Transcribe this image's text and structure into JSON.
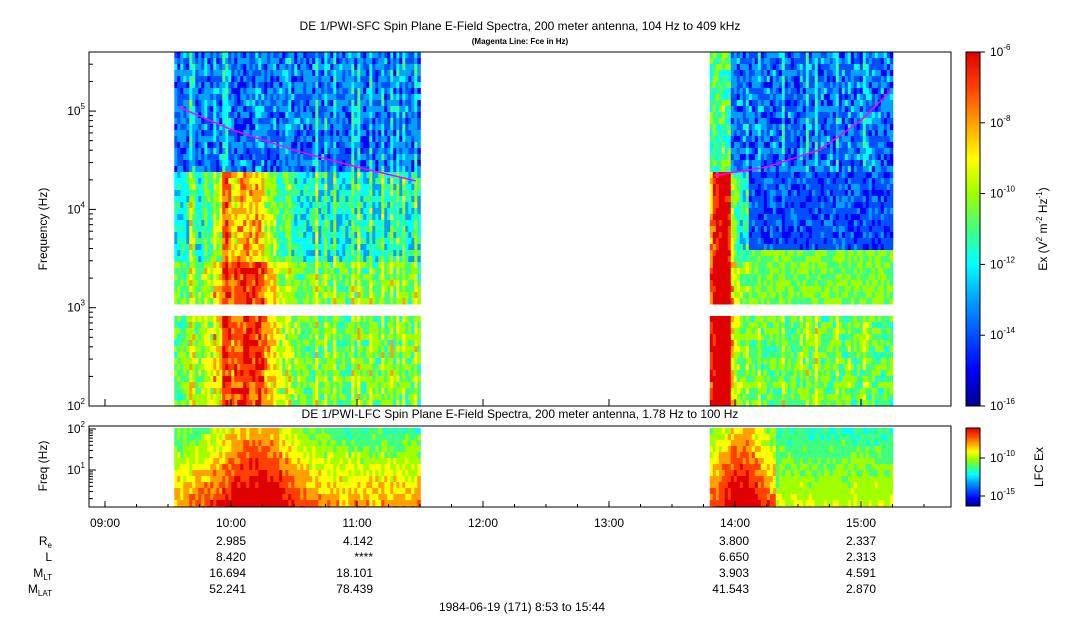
{
  "chart_data": [
    {
      "type": "heatmap",
      "title": "DE 1/PWI-SFC  Spin Plane E-Field Spectra, 200 meter antenna, 104 Hz to 409 kHz",
      "subtitle": "(Magenta Line: Fce in Hz)",
      "ylabel": "Frequency (Hz)",
      "yscale": "log",
      "ylim": [
        100,
        409000
      ],
      "yticks": [
        "10^2",
        "10^3",
        "10^4",
        "10^5"
      ],
      "colorbar": {
        "label": "Ex (V^2 m^-2 Hz^-1)",
        "scale": "log",
        "range": [
          1e-16,
          1e-06
        ],
        "ticks": [
          "10^-6",
          "10^-8",
          "10^-10",
          "10^-12",
          "10^-14",
          "10^-16"
        ]
      },
      "data_intervals": [
        [
          "09:33",
          "11:30"
        ],
        [
          "13:48",
          "15:14"
        ]
      ],
      "fce_line": {
        "name": "Fce",
        "color": "#ff00ff",
        "segments": [
          {
            "x": [
              "09:35",
              "10:00",
              "10:30",
              "11:00",
              "11:28"
            ],
            "y": [
              110000,
              65000,
              40000,
              27000,
              19500
            ]
          },
          {
            "x": [
              "13:50",
              "14:15",
              "14:40",
              "15:00",
              "15:14"
            ],
            "y": [
              22000,
              27000,
              40000,
              80000,
              160000
            ]
          }
        ]
      }
    },
    {
      "type": "heatmap",
      "title": "DE 1/PWI-LFC  Spin Plane E-Field Spectra, 200 meter antenna, 1.78 Hz to 100 Hz",
      "ylabel": "Freq (Hz)",
      "yscale": "log",
      "ylim": [
        1.78,
        100
      ],
      "yticks": [
        "10^1",
        "10^2"
      ],
      "colorbar": {
        "label": "LFC Ex",
        "scale": "log",
        "ticks": [
          "10^-10",
          "10^-15"
        ]
      },
      "data_intervals": [
        [
          "09:33",
          "11:30"
        ],
        [
          "13:48",
          "15:14"
        ]
      ]
    }
  ],
  "time_axis": {
    "ticks": [
      "09:00",
      "10:00",
      "11:00",
      "12:00",
      "13:00",
      "14:00",
      "15:00"
    ]
  },
  "ephemeris": {
    "labels": [
      "R",
      "L",
      "M",
      "M"
    ],
    "label_subs": [
      "e",
      "",
      "LT",
      "LAT"
    ],
    "columns": [
      {
        "values": [
          "2.985",
          "8.420",
          "16.694",
          "52.241"
        ]
      },
      {
        "values": [
          "4.142",
          "****",
          "18.101",
          "78.439"
        ]
      },
      {
        "values": [
          "3.800",
          "6.650",
          "3.903",
          "41.543"
        ]
      },
      {
        "values": [
          "2.337",
          "2.313",
          "4.591",
          "2.870"
        ]
      }
    ]
  },
  "footer": "1984-06-19 (171) 8:53 to 15:44",
  "colors": {
    "fce_line": "#ff00ff",
    "colormap": [
      "#00008f",
      "#0000ff",
      "#0050ff",
      "#00a0ff",
      "#00ffff",
      "#40ff80",
      "#a0ff00",
      "#ffff00",
      "#ffa000",
      "#ff4000",
      "#e00000"
    ]
  }
}
